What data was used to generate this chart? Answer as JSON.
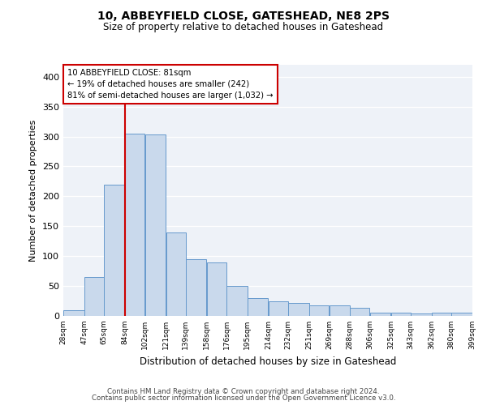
{
  "title1": "10, ABBEYFIELD CLOSE, GATESHEAD, NE8 2PS",
  "title2": "Size of property relative to detached houses in Gateshead",
  "xlabel": "Distribution of detached houses by size in Gateshead",
  "ylabel": "Number of detached properties",
  "footer1": "Contains HM Land Registry data © Crown copyright and database right 2024.",
  "footer2": "Contains public sector information licensed under the Open Government Licence v3.0.",
  "annotation_line1": "10 ABBEYFIELD CLOSE: 81sqm",
  "annotation_line2": "← 19% of detached houses are smaller (242)",
  "annotation_line3": "81% of semi-detached houses are larger (1,032) →",
  "bar_left_edges": [
    28,
    47,
    65,
    84,
    102,
    121,
    139,
    158,
    176,
    195,
    214,
    232,
    251,
    269,
    288,
    306,
    325,
    343,
    362,
    380
  ],
  "bar_widths": [
    19,
    18,
    19,
    18,
    19,
    18,
    19,
    18,
    19,
    19,
    18,
    19,
    18,
    19,
    18,
    19,
    18,
    19,
    18,
    19
  ],
  "bar_heights": [
    10,
    65,
    220,
    305,
    303,
    140,
    95,
    90,
    50,
    30,
    25,
    22,
    18,
    17,
    13,
    5,
    5,
    4,
    5,
    5
  ],
  "bar_color": "#c9d9ec",
  "bar_edge_color": "#6699cc",
  "vline_color": "#cc0000",
  "vline_x": 84,
  "bg_color": "#eef2f8",
  "annotation_box_color": "#cc0000",
  "ylim": [
    0,
    420
  ],
  "yticks": [
    0,
    50,
    100,
    150,
    200,
    250,
    300,
    350,
    400
  ],
  "tick_labels": [
    "28sqm",
    "47sqm",
    "65sqm",
    "84sqm",
    "102sqm",
    "121sqm",
    "139sqm",
    "158sqm",
    "176sqm",
    "195sqm",
    "214sqm",
    "232sqm",
    "251sqm",
    "269sqm",
    "288sqm",
    "306sqm",
    "325sqm",
    "343sqm",
    "362sqm",
    "380sqm",
    "399sqm"
  ]
}
